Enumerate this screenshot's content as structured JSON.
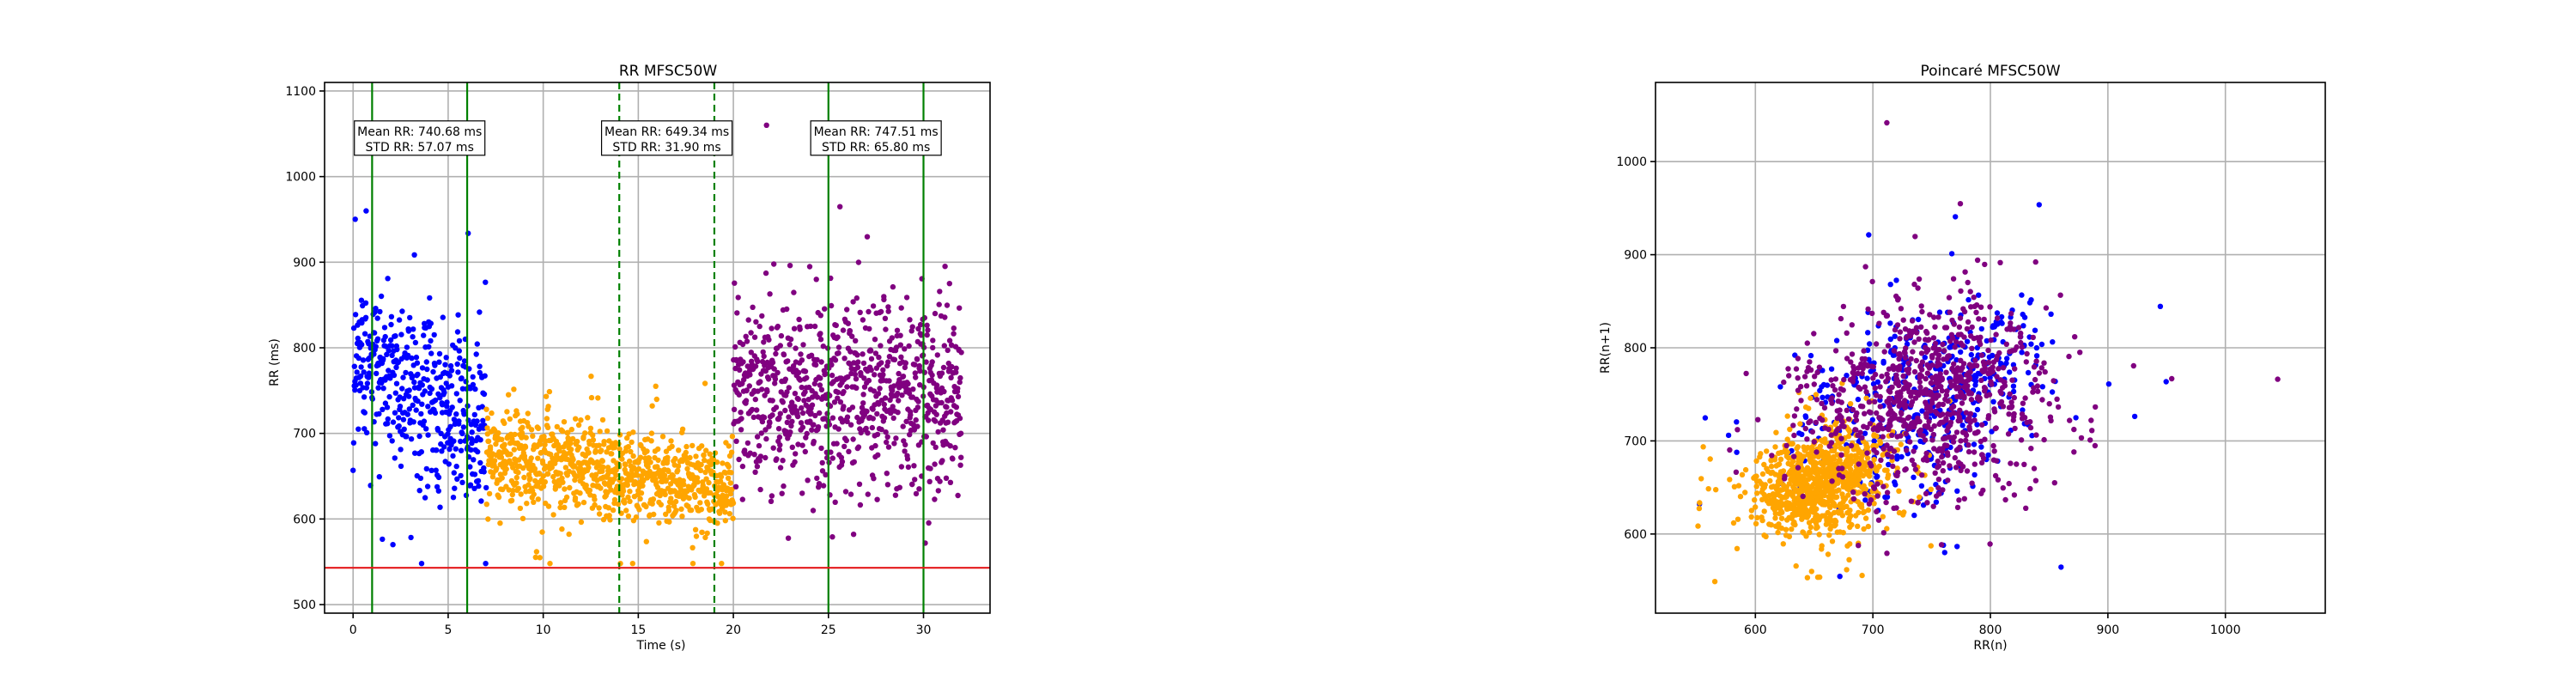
{
  "chart_data": [
    {
      "type": "scatter",
      "title": "RR MFSC50W",
      "xlabel": "Time (s)",
      "ylabel": "RR (ms)",
      "xlim": [
        -1.5,
        33.5
      ],
      "ylim": [
        490,
        1110
      ],
      "x_ticks": [
        0,
        5,
        10,
        15,
        20,
        25,
        30
      ],
      "y_ticks": [
        500,
        600,
        700,
        800,
        900,
        1000,
        1100
      ],
      "grid": true,
      "threshold_line": {
        "y": 543,
        "color": "#e41a1c"
      },
      "vlines": [
        {
          "x": 1,
          "style": "solid",
          "color": "#008000"
        },
        {
          "x": 6,
          "style": "solid",
          "color": "#008000"
        },
        {
          "x": 14,
          "style": "dashed",
          "color": "#008000"
        },
        {
          "x": 19,
          "style": "dashed",
          "color": "#008000"
        },
        {
          "x": 25,
          "style": "solid",
          "color": "#008000"
        },
        {
          "x": 30,
          "style": "solid",
          "color": "#008000"
        }
      ],
      "annotations": [
        {
          "x": 3.5,
          "y": 1045,
          "line1": "Mean RR: 740.68 ms",
          "line2": "STD RR: 57.07 ms"
        },
        {
          "x": 16.5,
          "y": 1045,
          "line1": "Mean RR: 649.34 ms",
          "line2": "STD RR: 31.90 ms"
        },
        {
          "x": 27.5,
          "y": 1045,
          "line1": "Mean RR: 747.51 ms",
          "line2": "STD RR: 65.80 ms"
        }
      ],
      "series": [
        {
          "color": "#0000ff",
          "x_range": [
            0,
            7
          ],
          "mean": 740.68,
          "std": 57.07
        },
        {
          "color": "#ffa500",
          "x_range": [
            7,
            20
          ],
          "mean": 649.34,
          "std": 31.9
        },
        {
          "color": "#800080",
          "x_range": [
            20,
            32
          ],
          "mean": 747.51,
          "std": 65.8
        }
      ]
    },
    {
      "type": "scatter",
      "title": "Poincaré MFSC50W",
      "xlabel": "RR(n)",
      "ylabel": "RR(n+1)",
      "xlim": [
        515,
        1085
      ],
      "ylim": [
        515,
        1085
      ],
      "x_ticks": [
        600,
        700,
        800,
        900,
        1000
      ],
      "y_ticks": [
        600,
        700,
        800,
        900,
        1000
      ],
      "grid": true,
      "series": [
        {
          "color": "#0000ff",
          "center": 740.68,
          "std": 57.07
        },
        {
          "color": "#ffa500",
          "center": 649.34,
          "std": 31.9
        },
        {
          "color": "#800080",
          "center": 747.51,
          "std": 65.8
        }
      ]
    }
  ]
}
